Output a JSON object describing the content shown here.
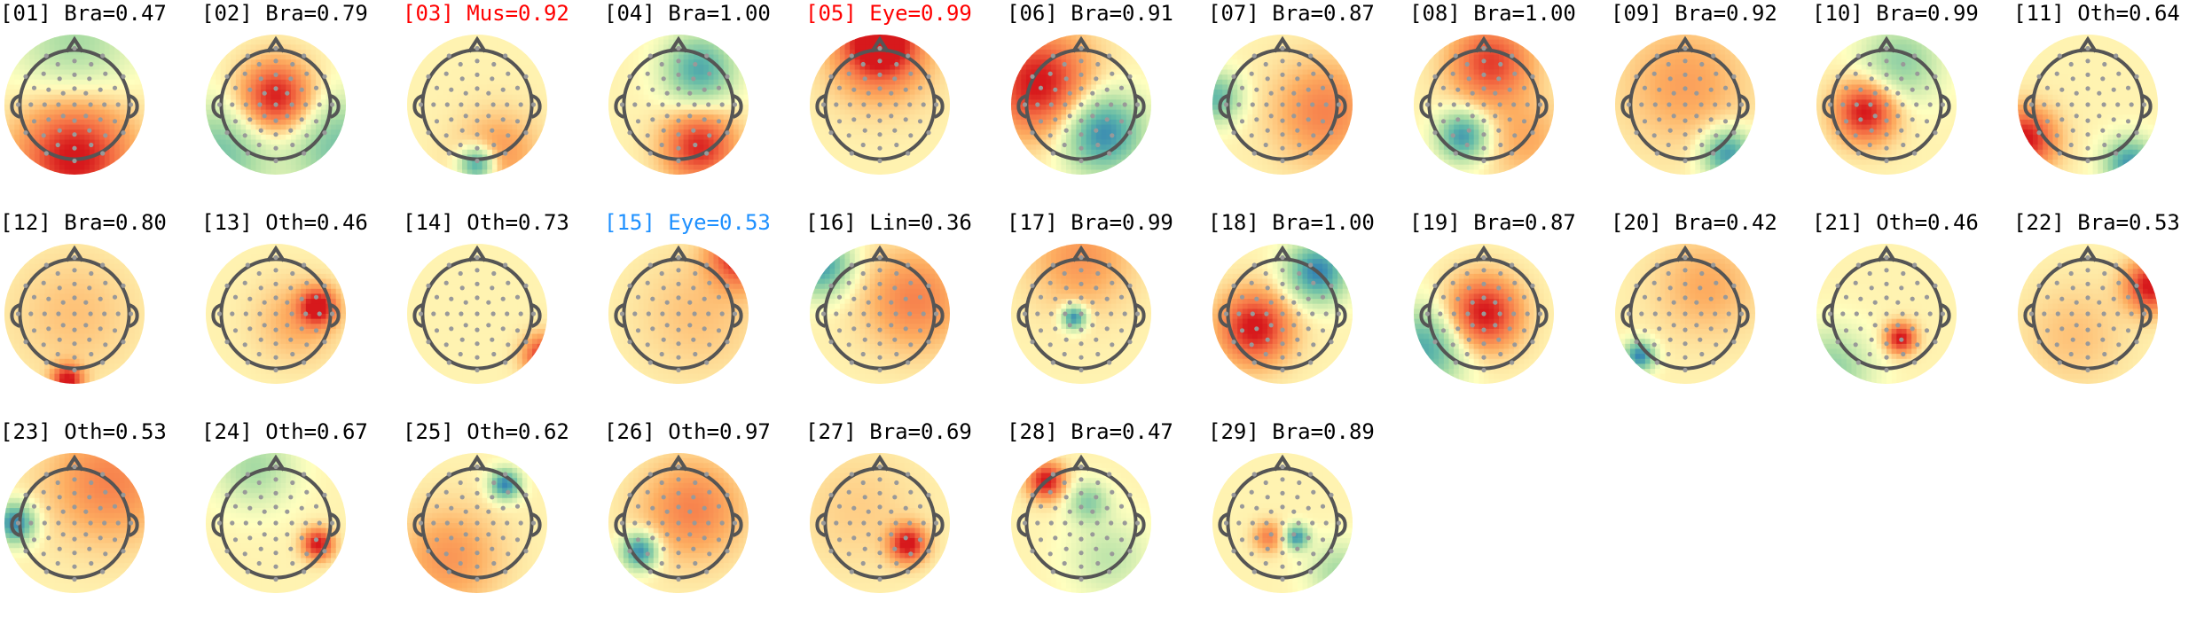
{
  "colors": {
    "default_label": "#000000",
    "muscle_label": "#ff0000",
    "eye_label_confident": "#ff0000",
    "eye_label_uncertain": "#1e90ff",
    "head_outline": "#555555",
    "electrode": "#999999",
    "colormap": [
      "#2c7bb6",
      "#5fb8a8",
      "#abdda4",
      "#ffffbf",
      "#fdae61",
      "#f46d43",
      "#d7191c"
    ]
  },
  "components": [
    {
      "label": "[01] Bra=0.47",
      "color_key": "default_label",
      "colormap": "RdYlBu_r"
    },
    {
      "label": "[02] Bra=0.79",
      "color_key": "default_label",
      "colormap": "RdYlBu_r"
    },
    {
      "label": "[03] Mus=0.92",
      "color_key": "muscle_label",
      "colormap": "RdYlBu_r"
    },
    {
      "label": "[04] Bra=1.00",
      "color_key": "default_label",
      "colormap": "RdYlBu_r"
    },
    {
      "label": "[05] Eye=0.99",
      "color_key": "eye_label_confident",
      "colormap": "RdYlBu_r"
    },
    {
      "label": "[06] Bra=0.91",
      "color_key": "default_label",
      "colormap": "RdYlBu_r"
    },
    {
      "label": "[07] Bra=0.87",
      "color_key": "default_label",
      "colormap": "RdYlBu_r"
    },
    {
      "label": "[08] Bra=1.00",
      "color_key": "default_label",
      "colormap": "RdYlBu_r"
    },
    {
      "label": "[09] Bra=0.92",
      "color_key": "default_label",
      "colormap": "RdYlBu_r"
    },
    {
      "label": "[10] Bra=0.99",
      "color_key": "default_label",
      "colormap": "RdYlBu_r"
    },
    {
      "label": "[11] Oth=0.64",
      "color_key": "default_label",
      "colormap": "RdYlBu_r"
    },
    {
      "label": "[12] Bra=0.80",
      "color_key": "default_label",
      "colormap": "RdYlBu_r"
    },
    {
      "label": "[13] Oth=0.46",
      "color_key": "default_label",
      "colormap": "RdYlBu_r"
    },
    {
      "label": "[14] Oth=0.73",
      "color_key": "default_label",
      "colormap": "RdYlBu_r"
    },
    {
      "label": "[15] Eye=0.53",
      "color_key": "eye_label_uncertain",
      "colormap": "RdYlBu_r"
    },
    {
      "label": "[16] Lin=0.36",
      "color_key": "default_label",
      "colormap": "RdYlBu_r"
    },
    {
      "label": "[17] Bra=0.99",
      "color_key": "default_label",
      "colormap": "RdYlBu_r"
    },
    {
      "label": "[18] Bra=1.00",
      "color_key": "default_label",
      "colormap": "RdYlBu_r"
    },
    {
      "label": "[19] Bra=0.87",
      "color_key": "default_label",
      "colormap": "RdYlBu_r"
    },
    {
      "label": "[20] Bra=0.42",
      "color_key": "default_label",
      "colormap": "RdYlBu_r"
    },
    {
      "label": "[21] Oth=0.46",
      "color_key": "default_label",
      "colormap": "RdYlBu_r"
    },
    {
      "label": "[22] Bra=0.53",
      "color_key": "default_label",
      "colormap": "RdYlBu_r"
    },
    {
      "label": "[23] Oth=0.53",
      "color_key": "default_label",
      "colormap": "RdYlBu_r"
    },
    {
      "label": "[24] Oth=0.67",
      "color_key": "default_label",
      "colormap": "RdYlBu_r"
    },
    {
      "label": "[25] Oth=0.62",
      "color_key": "default_label",
      "colormap": "RdYlBu_r"
    },
    {
      "label": "[26] Oth=0.97",
      "color_key": "default_label",
      "colormap": "RdYlBu_r"
    },
    {
      "label": "[27] Bra=0.69",
      "color_key": "default_label",
      "colormap": "RdYlBu_r"
    },
    {
      "label": "[28] Bra=0.47",
      "color_key": "default_label",
      "colormap": "RdYlBu_r"
    },
    {
      "label": "[29] Bra=0.89",
      "color_key": "default_label",
      "colormap": "RdYlBu_r"
    }
  ]
}
